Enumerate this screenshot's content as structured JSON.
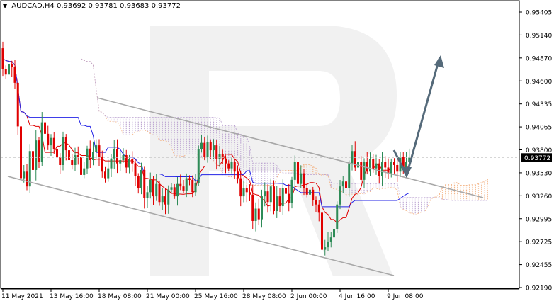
{
  "header": {
    "symbol_label": "AUDCAD,H4",
    "ohlc_text": "0.93692 0.93781 0.93683 0.93772",
    "dropdown_icon": "triangle-down-icon"
  },
  "colors": {
    "bull": "#2e8b57",
    "bear": "#e00000",
    "kijun": "#2323e6",
    "tenkan": "#e00000",
    "cloud_bear": "#b9a0cf",
    "cloud_bull": "#f3b07f",
    "trend_line": "#a8a8a8",
    "arrow": "#556a7a",
    "price_badge_bg": "#000000",
    "price_badge_fg": "#ffffff"
  },
  "chart_data": {
    "type": "candlestick",
    "symbol": "AUDCAD",
    "timeframe": "H4",
    "current_price": "0.93772",
    "ylim": [
      0.9219,
      0.9554
    ],
    "y_ticks": [
      "0.95405",
      "0.95140",
      "0.94870",
      "0.94600",
      "0.94335",
      "0.94065",
      "0.93800",
      "0.93530",
      "0.93260",
      "0.92995",
      "0.92725",
      "0.92455",
      "0.92190"
    ],
    "x_ticks": [
      "11 May 2021",
      "13 May 16:00",
      "18 May 08:00",
      "21 May 00:00",
      "25 May 16:00",
      "28 May 08:00",
      "2 Jun 00:00",
      "4 Jun 16:00",
      "9 Jun 08:00"
    ],
    "x_tick_index": [
      0,
      16,
      32,
      48,
      64,
      80,
      96,
      112,
      128
    ],
    "closes": [
      0.9485,
      0.9478,
      0.9491,
      0.9487,
      0.9468,
      0.9415,
      0.9352,
      0.936,
      0.9342,
      0.9385,
      0.9362,
      0.9398,
      0.9372,
      0.942,
      0.9406,
      0.9392,
      0.9401,
      0.9387,
      0.9378,
      0.9368,
      0.9402,
      0.9386,
      0.9374,
      0.9368,
      0.938,
      0.9378,
      0.9356,
      0.9364,
      0.9388,
      0.9374,
      0.9384,
      0.9392,
      0.9378,
      0.936,
      0.9352,
      0.9364,
      0.9376,
      0.9387,
      0.937,
      0.9374,
      0.938,
      0.9365,
      0.9375,
      0.937,
      0.9355,
      0.934,
      0.9362,
      0.9328,
      0.9335,
      0.935,
      0.933,
      0.9345,
      0.9323,
      0.933,
      0.932,
      0.9338,
      0.9341,
      0.933,
      0.9345,
      0.9342,
      0.9337,
      0.9352,
      0.935,
      0.9335,
      0.9346,
      0.9387,
      0.9395,
      0.9378,
      0.9396,
      0.9386,
      0.9392,
      0.9375,
      0.9381,
      0.9376,
      0.937,
      0.9364,
      0.9372,
      0.936,
      0.9352,
      0.933,
      0.934,
      0.9335,
      0.9332,
      0.93,
      0.9315,
      0.9302,
      0.933,
      0.9336,
      0.9323,
      0.9342,
      0.9312,
      0.933,
      0.9318,
      0.934,
      0.9333,
      0.9322,
      0.935,
      0.9372,
      0.9345,
      0.9358,
      0.934,
      0.9332,
      0.9338,
      0.9325,
      0.932,
      0.931,
      0.9265,
      0.9268,
      0.9275,
      0.928,
      0.929,
      0.932,
      0.9342,
      0.9348,
      0.934,
      0.937,
      0.9385,
      0.9365,
      0.9372,
      0.935,
      0.9372,
      0.936,
      0.9375,
      0.9364,
      0.937,
      0.9355,
      0.9372,
      0.9365,
      0.9358,
      0.9372,
      0.9368,
      0.936,
      0.9378,
      0.9362,
      0.9372,
      0.9377
    ]
  }
}
